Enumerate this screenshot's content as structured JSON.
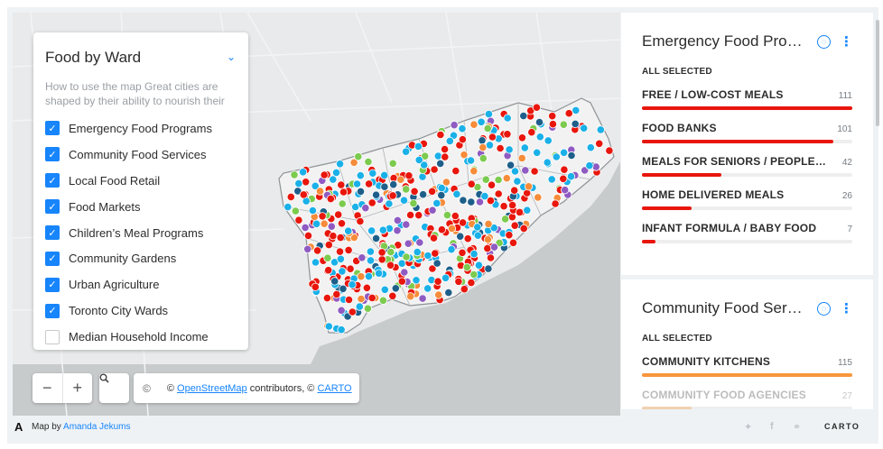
{
  "layer_panel": {
    "title": "Food by Ward",
    "description": "How to use the map Great cities are shaped by their ability to nourish their",
    "layers": [
      {
        "label": "Emergency Food Programs",
        "checked": true
      },
      {
        "label": "Community Food Services",
        "checked": true
      },
      {
        "label": "Local Food Retail",
        "checked": true
      },
      {
        "label": "Food Markets",
        "checked": true
      },
      {
        "label": "Children’s Meal Programs",
        "checked": true
      },
      {
        "label": "Community Gardens",
        "checked": true
      },
      {
        "label": "Urban Agriculture",
        "checked": true
      },
      {
        "label": "Toronto City Wards",
        "checked": true
      },
      {
        "label": "Median Household Income",
        "checked": false
      }
    ]
  },
  "map_controls": {
    "zoom_out": "−",
    "zoom_in": "+",
    "search_icon": "search-icon",
    "attribution_symbol": "©",
    "attribution_prefix": "© ",
    "attribution_link1": "OpenStreetMap",
    "attribution_middle": " contributors, © ",
    "attribution_link2": "CARTO"
  },
  "widgets": [
    {
      "title": "Emergency Food Programs",
      "selection": "ALL SELECTED",
      "color": "#e8160c",
      "max": 111,
      "categories": [
        {
          "name": "FREE / LOW-COST MEALS",
          "value": 111
        },
        {
          "name": "FOOD BANKS",
          "value": 101
        },
        {
          "name": "MEALS FOR SENIORS / PEOPLE WITH DISABILITIES",
          "value": 42
        },
        {
          "name": "HOME DELIVERED MEALS",
          "value": 26
        },
        {
          "name": "INFANT FORMULA / BABY FOOD",
          "value": 7
        }
      ]
    },
    {
      "title": "Community Food Services",
      "selection": "ALL SELECTED",
      "color": "#f7973c",
      "max": 115,
      "categories": [
        {
          "name": "COMMUNITY KITCHENS",
          "value": 115
        },
        {
          "name": "COMMUNITY FOOD AGENCIES",
          "value": 27
        }
      ]
    }
  ],
  "legend_colors": {
    "emergency": "#e8160c",
    "community": "#1ab0e8",
    "retail": "#7ccb4e",
    "markets": "#f68c3a",
    "children": "#1e5f8a",
    "gardens": "#8f5bc2"
  },
  "footer": {
    "logo": "A",
    "map_by": "Map by ",
    "author": "Amanda Jekums",
    "share_icons": [
      "twitter-icon",
      "facebook-icon",
      "link-icon"
    ],
    "brand": "CARTO"
  }
}
